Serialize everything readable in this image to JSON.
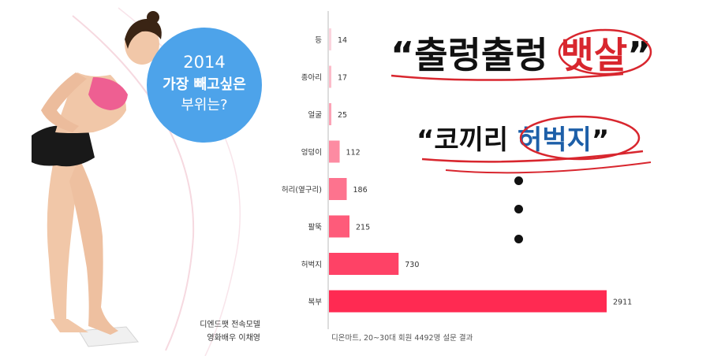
{
  "promo": {
    "line1": "2014",
    "line2": "가장 빼고싶은",
    "line3": "부위는?",
    "credit1": "디엔드팻 전속모델",
    "credit2": "영화배우 이채영"
  },
  "headlines": {
    "h1_prefix": "“출렁출렁 ",
    "h1_word": "뱃살",
    "h1_suffix": "”",
    "h2_prefix": "“코끼리 ",
    "h2_word": "허벅지",
    "h2_suffix": "”"
  },
  "chart_data": {
    "type": "bar",
    "orientation": "horizontal",
    "categories": [
      "등",
      "종아리",
      "얼굴",
      "엉덩이",
      "허리(옆구리)",
      "팔뚝",
      "허벅지",
      "복부"
    ],
    "values": [
      14,
      17,
      25,
      112,
      186,
      215,
      730,
      2911
    ],
    "source": "디온마트, 20~30대 회원 4492명 설문 결과",
    "grid": false,
    "xlim": [
      0,
      2911
    ],
    "colors": {
      "accent": "#ff2a52",
      "light": "#fbd4de",
      "headline_red": "#d8262e",
      "headline_blue": "#1d5fa8",
      "bubble": "#4da3ea"
    }
  }
}
